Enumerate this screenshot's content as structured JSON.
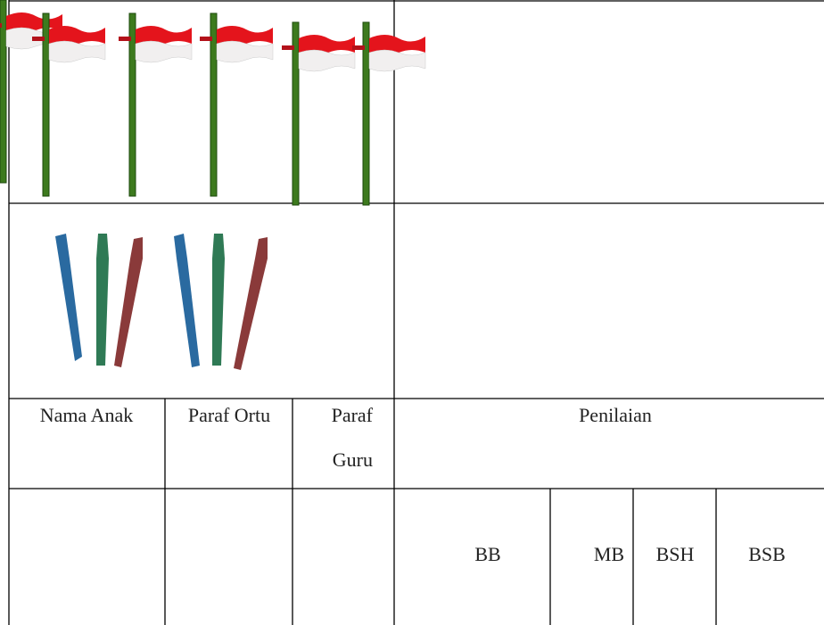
{
  "table": {
    "header": [
      "Nama Anak",
      "Paraf Ortu",
      "Paraf",
      "Guru",
      "Penilaian"
    ],
    "grades": [
      "BB",
      "MB",
      "BSH",
      "BSB"
    ]
  }
}
